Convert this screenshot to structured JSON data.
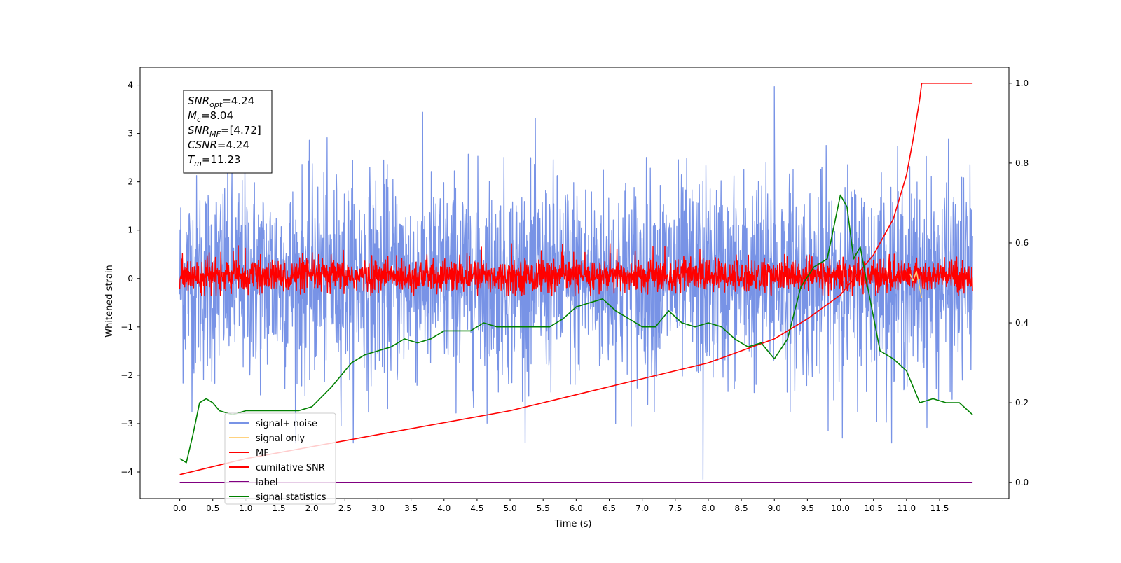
{
  "chart_data": {
    "type": "line",
    "xlabel": "Time (s)",
    "ylabel": "Whitened strain",
    "xlim": [
      -0.6,
      12.55
    ],
    "ylim": [
      -4.55,
      4.37
    ],
    "y2lim": [
      -0.04,
      1.04
    ],
    "xticks": [
      0.0,
      0.5,
      1.0,
      1.5,
      2.0,
      2.5,
      3.0,
      3.5,
      4.0,
      4.5,
      5.0,
      5.5,
      6.0,
      6.5,
      7.0,
      7.5,
      8.0,
      8.5,
      9.0,
      9.5,
      10.0,
      10.5,
      11.0,
      11.5
    ],
    "xtick_labels": [
      "0.0",
      "0.5",
      "1.0",
      "1.5",
      "2.0",
      "2.5",
      "3.0",
      "3.5",
      "4.0",
      "4.5",
      "5.0",
      "5.5",
      "6.0",
      "6.5",
      "7.0",
      "7.5",
      "8.0",
      "8.5",
      "9.0",
      "9.5",
      "10.0",
      "10.5",
      "11.0",
      "11.5"
    ],
    "yticks": [
      4,
      3,
      2,
      1,
      0,
      -1,
      -2,
      -3,
      -4
    ],
    "ytick_labels": [
      "4",
      "3",
      "2",
      "1",
      "0",
      "−1",
      "−2",
      "−3",
      "−4"
    ],
    "y2ticks": [
      1.0,
      0.8,
      0.6,
      0.4,
      0.2,
      0.0
    ],
    "y2tick_labels": [
      "1.0",
      "0.8",
      "0.6",
      "0.4",
      "0.2",
      "0.0"
    ],
    "annotation": {
      "lines": [
        {
          "base": "SNR",
          "sub": "opt",
          "value": "=4.24"
        },
        {
          "base": "M",
          "sub": "c",
          "value": "=8.04"
        },
        {
          "base": "SNR",
          "sub": "MF",
          "value": "=[4.72]"
        },
        {
          "base": "CSNR",
          "sub": "",
          "value": "=4.24"
        },
        {
          "base": "T",
          "sub": "m",
          "value": "=11.23"
        }
      ]
    },
    "legend": {
      "placement": "lower-left",
      "entries": [
        {
          "label": "signal+ noise",
          "color": "#7893e6"
        },
        {
          "label": "signal only",
          "color": "#ffd27f"
        },
        {
          "label": "MF",
          "color": "#ff0000"
        },
        {
          "label": "cumilative SNR",
          "color": "#ff0000"
        },
        {
          "label": "label",
          "color": "#800080"
        },
        {
          "label": "signal statistics",
          "color": "#008000"
        }
      ]
    },
    "series": [
      {
        "name": "signal+ noise",
        "axis": "left",
        "color": "#7893e6",
        "generated": "noise",
        "x_range": [
          0.0,
          12.0
        ],
        "band": [
          -1.3,
          1.3
        ],
        "extremes": {
          "max": 3.97,
          "min": -4.15
        }
      },
      {
        "name": "signal only",
        "axis": "left",
        "color": "#ffd27f",
        "x": [
          11.05,
          11.1,
          11.15,
          11.2,
          11.23
        ],
        "y": [
          0.1,
          -0.05,
          0.15,
          -0.2,
          -0.4
        ]
      },
      {
        "name": "MF",
        "axis": "left",
        "color": "#ff0000",
        "generated": "noise",
        "x_range": [
          0.0,
          12.0
        ],
        "band": [
          -0.35,
          0.95
        ]
      },
      {
        "name": "cumilative SNR",
        "axis": "right",
        "color": "#ff0000",
        "x": [
          0.0,
          1.0,
          2.0,
          3.0,
          4.0,
          5.0,
          6.0,
          7.0,
          8.0,
          9.0,
          9.5,
          10.0,
          10.5,
          10.8,
          11.0,
          11.1,
          11.2,
          11.23,
          12.0
        ],
        "y": [
          0.02,
          0.06,
          0.09,
          0.12,
          0.15,
          0.18,
          0.22,
          0.26,
          0.3,
          0.36,
          0.41,
          0.47,
          0.57,
          0.66,
          0.77,
          0.86,
          0.96,
          1.0,
          1.0
        ]
      },
      {
        "name": "label",
        "axis": "right",
        "color": "#800080",
        "x": [
          0.0,
          12.0
        ],
        "y": [
          0.0,
          0.0
        ]
      },
      {
        "name": "signal statistics",
        "axis": "right",
        "color": "#008000",
        "x": [
          0.0,
          0.1,
          0.2,
          0.3,
          0.4,
          0.5,
          0.6,
          0.8,
          1.0,
          1.2,
          1.5,
          1.8,
          2.0,
          2.3,
          2.6,
          2.8,
          3.0,
          3.2,
          3.4,
          3.6,
          3.8,
          4.0,
          4.2,
          4.4,
          4.6,
          4.8,
          5.0,
          5.2,
          5.4,
          5.6,
          5.8,
          6.0,
          6.2,
          6.4,
          6.6,
          6.8,
          7.0,
          7.2,
          7.4,
          7.6,
          7.8,
          8.0,
          8.2,
          8.4,
          8.6,
          8.8,
          9.0,
          9.2,
          9.4,
          9.6,
          9.8,
          10.0,
          10.1,
          10.2,
          10.3,
          10.4,
          10.6,
          10.8,
          11.0,
          11.2,
          11.4,
          11.6,
          11.8,
          12.0
        ],
        "y": [
          0.06,
          0.05,
          0.12,
          0.2,
          0.21,
          0.2,
          0.18,
          0.17,
          0.18,
          0.18,
          0.18,
          0.18,
          0.19,
          0.24,
          0.3,
          0.32,
          0.33,
          0.34,
          0.36,
          0.35,
          0.36,
          0.38,
          0.38,
          0.38,
          0.4,
          0.39,
          0.39,
          0.39,
          0.39,
          0.39,
          0.41,
          0.44,
          0.45,
          0.46,
          0.43,
          0.41,
          0.39,
          0.39,
          0.43,
          0.4,
          0.39,
          0.4,
          0.39,
          0.36,
          0.34,
          0.35,
          0.31,
          0.36,
          0.49,
          0.54,
          0.56,
          0.72,
          0.69,
          0.56,
          0.59,
          0.5,
          0.33,
          0.31,
          0.28,
          0.2,
          0.21,
          0.2,
          0.2,
          0.17
        ]
      }
    ]
  }
}
